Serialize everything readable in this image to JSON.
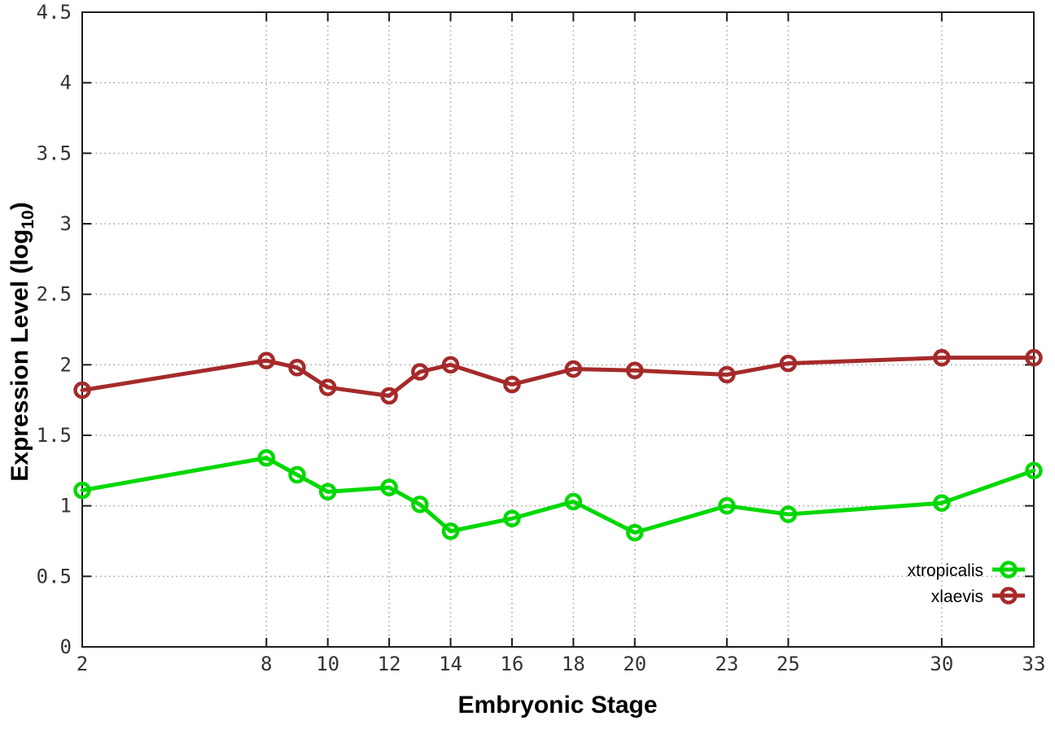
{
  "chart_data": {
    "type": "line",
    "title": "",
    "xlabel": "Embryonic Stage",
    "ylabel": "Expression Level (log10)",
    "ylabel_parts": {
      "pre": "Expression Level (log",
      "sub": "10",
      "post": ")"
    },
    "x": [
      2,
      8,
      9,
      10,
      12,
      13,
      14,
      16,
      18,
      20,
      23,
      25,
      30,
      33
    ],
    "x_tick_labels": [
      "2",
      "8",
      "10",
      "12",
      "14",
      "16",
      "18",
      "20",
      "23",
      "25",
      "30",
      "33"
    ],
    "x_ticks": [
      2,
      8,
      10,
      12,
      14,
      16,
      18,
      20,
      23,
      25,
      30,
      33
    ],
    "y_ticks": [
      0,
      0.5,
      1,
      1.5,
      2,
      2.5,
      3,
      3.5,
      4,
      4.5
    ],
    "y_tick_labels": [
      "0",
      "0.5",
      "1",
      "1.5",
      "2",
      "2.5",
      "3",
      "3.5",
      "4",
      "4.5"
    ],
    "xlim": [
      2,
      33
    ],
    "ylim": [
      0,
      4.5
    ],
    "grid": true,
    "legend_position": "bottom-right",
    "series": [
      {
        "name": "xtropicalis",
        "color": "#00d800",
        "marker": "open-circle",
        "values": [
          1.11,
          1.34,
          1.22,
          1.1,
          1.13,
          1.01,
          0.82,
          0.91,
          1.03,
          0.81,
          1.0,
          0.94,
          1.02,
          1.25
        ]
      },
      {
        "name": "xlaevis",
        "color": "#a52a2a",
        "marker": "open-circle",
        "values": [
          1.82,
          2.03,
          1.98,
          1.84,
          1.78,
          1.95,
          2.0,
          1.86,
          1.97,
          1.96,
          1.93,
          2.01,
          2.05,
          2.05
        ]
      }
    ]
  },
  "colors": {
    "background": "#ffffff",
    "axis": "#1c1c1c",
    "grid": "#9e9e9e",
    "tick_text": "#333333",
    "label_text": "#000000"
  }
}
